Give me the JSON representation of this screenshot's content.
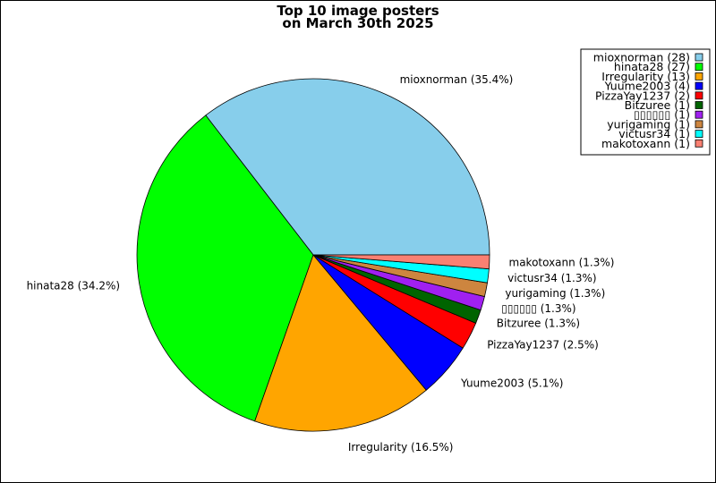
{
  "chart_data": {
    "type": "pie",
    "title_line1": "Top 10 image posters",
    "title_line2": "on March 30th 2025",
    "legend_position": "top-right",
    "slices": [
      {
        "name": "mioxnorman",
        "value": 28,
        "percent": "35.4%",
        "color": "#87CEEB"
      },
      {
        "name": "hinata28",
        "value": 27,
        "percent": "34.2%",
        "color": "#00FF00"
      },
      {
        "name": "Irregularity",
        "value": 13,
        "percent": "16.5%",
        "color": "#FFA500"
      },
      {
        "name": "Yuume2003",
        "value": 4,
        "percent": "5.1%",
        "color": "#0000FF"
      },
      {
        "name": "PizzaYay1237",
        "value": 2,
        "percent": "2.5%",
        "color": "#FF0000"
      },
      {
        "name": "Bitzuree",
        "value": 1,
        "percent": "1.3%",
        "color": "#006400"
      },
      {
        "name": "▯▯▯▯▯▯",
        "value": 1,
        "percent": "1.3%",
        "color": "#A020F0"
      },
      {
        "name": "yurigaming",
        "value": 1,
        "percent": "1.3%",
        "color": "#CD853F"
      },
      {
        "name": "victusr34",
        "value": 1,
        "percent": "1.3%",
        "color": "#00FFFF"
      },
      {
        "name": "makotoxann",
        "value": 1,
        "percent": "1.3%",
        "color": "#FA8072"
      }
    ]
  }
}
